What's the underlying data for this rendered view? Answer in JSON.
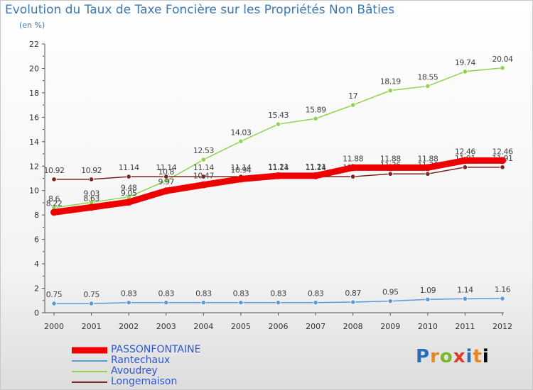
{
  "title": "Evolution du Taux de Taxe Foncière sur les Propriétés Non Bâties",
  "subtitle": "(en %)",
  "logo_text": "Proxiti",
  "chart_data": {
    "type": "line",
    "title": "Evolution du Taux de Taxe Foncière sur les Propriétés Non Bâties",
    "ylabel": "(en %)",
    "xlabel": "",
    "ylim": [
      0,
      22
    ],
    "yticks": [
      0,
      2,
      4,
      6,
      8,
      10,
      12,
      14,
      16,
      18,
      20,
      22
    ],
    "grid": false,
    "legend_position": "bottom-left",
    "x": [
      "2000",
      "2001",
      "2002",
      "2003",
      "2004",
      "2005",
      "2006",
      "2007",
      "2008",
      "2009",
      "2010",
      "2011",
      "2012"
    ],
    "series": [
      {
        "name": "Rantechaux",
        "color": "#5b9bd5",
        "values": [
          0.75,
          0.75,
          0.83,
          0.83,
          0.83,
          0.83,
          0.83,
          0.83,
          0.87,
          0.95,
          1.09,
          1.14,
          1.16
        ],
        "labels": [
          "0.75",
          "0.75",
          "0.83",
          "0.83",
          "0.83",
          "0.83",
          "0.83",
          "0.83",
          "0.87",
          "0.95",
          "1.09",
          "1.14",
          "1.16"
        ]
      },
      {
        "name": "Avoudrey",
        "color": "#8fd44d",
        "values": [
          8.6,
          9.03,
          9.48,
          10.8,
          12.53,
          14.03,
          15.43,
          15.89,
          17,
          18.19,
          18.55,
          19.74,
          20.04
        ],
        "labels": [
          "8.6",
          "9.03",
          "9.48",
          "10.8",
          "12.53",
          "14.03",
          "15.43",
          "15.89",
          "17",
          "18.19",
          "18.55",
          "19.74",
          "20.04"
        ]
      },
      {
        "name": "Longemaison",
        "color": "#7a2424",
        "values": [
          10.92,
          10.92,
          11.14,
          11.14,
          11.14,
          11.14,
          11.14,
          11.14,
          11.14,
          11.36,
          11.36,
          11.91,
          11.91
        ],
        "labels": [
          "10.92",
          "10.92",
          "11.14",
          "11.14",
          "11.14",
          "11.14",
          "11.14",
          "11.14",
          "11.14",
          "11.36",
          "11.36",
          "11.91",
          "11.91"
        ]
      },
      {
        "name": "PASSONFONTAINE",
        "color": "#ee0000",
        "values": [
          8.22,
          8.63,
          9.05,
          9.97,
          10.47,
          10.94,
          11.21,
          11.21,
          11.88,
          11.88,
          11.88,
          12.46,
          12.46
        ],
        "labels": [
          "8.22",
          "8.63",
          "9.05",
          "9.97",
          "10.47",
          "10.94",
          "11.21",
          "11.21",
          "11.88",
          "11.88",
          "11.88",
          "12.46",
          "12.46"
        ]
      }
    ],
    "legend": [
      {
        "name": "PASSONFONTAINE",
        "color": "#ee0000"
      },
      {
        "name": "Rantechaux",
        "color": "#5b9bd5"
      },
      {
        "name": "Avoudrey",
        "color": "#8fd44d"
      },
      {
        "name": "Longemaison",
        "color": "#7a2424"
      }
    ]
  }
}
